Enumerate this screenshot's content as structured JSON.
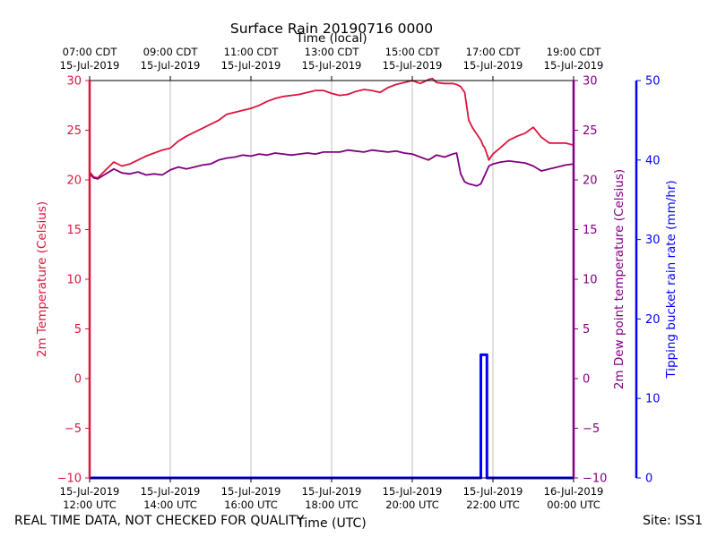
{
  "chart_data": {
    "type": "line",
    "title": "Surface Rain 20190716 0000",
    "top_axis_label": "Time (local)",
    "bottom_axis_label": "Time (UTC)",
    "x_range_hours_utc": [
      12,
      24
    ],
    "bottom_ticks": [
      {
        "h": 12,
        "line1": "15-Jul-2019",
        "line2": "12:00 UTC"
      },
      {
        "h": 14,
        "line1": "15-Jul-2019",
        "line2": "14:00 UTC"
      },
      {
        "h": 16,
        "line1": "15-Jul-2019",
        "line2": "16:00 UTC"
      },
      {
        "h": 18,
        "line1": "15-Jul-2019",
        "line2": "18:00 UTC"
      },
      {
        "h": 20,
        "line1": "15-Jul-2019",
        "line2": "20:00 UTC"
      },
      {
        "h": 22,
        "line1": "15-Jul-2019",
        "line2": "22:00 UTC"
      },
      {
        "h": 24,
        "line1": "16-Jul-2019",
        "line2": "00:00 UTC"
      }
    ],
    "top_ticks": [
      {
        "h": 12,
        "line1": "07:00 CDT",
        "line2": "15-Jul-2019"
      },
      {
        "h": 14,
        "line1": "09:00 CDT",
        "line2": "15-Jul-2019"
      },
      {
        "h": 16,
        "line1": "11:00 CDT",
        "line2": "15-Jul-2019"
      },
      {
        "h": 18,
        "line1": "13:00 CDT",
        "line2": "15-Jul-2019"
      },
      {
        "h": 20,
        "line1": "15:00 CDT",
        "line2": "15-Jul-2019"
      },
      {
        "h": 22,
        "line1": "17:00 CDT",
        "line2": "15-Jul-2019"
      },
      {
        "h": 24,
        "line1": "19:00 CDT",
        "line2": "15-Jul-2019"
      }
    ],
    "left_axis": {
      "label": "2m Temperature (Celsius)",
      "range": [
        -10,
        30
      ],
      "ticks": [
        -10,
        -5,
        0,
        5,
        10,
        15,
        20,
        25,
        30
      ],
      "color": "#dc143c"
    },
    "right_axis": {
      "label": "2m Dew point temperature (Celsius)",
      "range": [
        -10,
        30
      ],
      "ticks": [
        -10,
        -5,
        0,
        5,
        10,
        15,
        20,
        25,
        30
      ],
      "color": "#800080"
    },
    "rain_axis": {
      "label": "Tipping bucket rain rate (mm/hr)",
      "range": [
        0,
        50
      ],
      "ticks": [
        0,
        10,
        20,
        30,
        40,
        50
      ],
      "color": "#0000ff"
    },
    "series": [
      {
        "name": "2m Temperature",
        "axis": "left",
        "color": "#dc143c",
        "x": [
          12.0,
          12.1,
          12.2,
          12.4,
          12.6,
          12.8,
          13.0,
          13.2,
          13.4,
          13.6,
          13.8,
          14.0,
          14.2,
          14.4,
          14.6,
          14.8,
          15.0,
          15.2,
          15.4,
          15.6,
          15.8,
          16.0,
          16.2,
          16.4,
          16.6,
          16.8,
          17.0,
          17.2,
          17.4,
          17.6,
          17.8,
          18.0,
          18.2,
          18.4,
          18.6,
          18.8,
          19.0,
          19.2,
          19.4,
          19.6,
          19.8,
          20.0,
          20.2,
          20.4,
          20.5,
          20.6,
          20.8,
          21.0,
          21.1,
          21.2,
          21.3,
          21.4,
          21.5,
          21.6,
          21.7,
          21.75,
          21.8,
          21.9,
          22.0,
          22.2,
          22.4,
          22.6,
          22.8,
          22.9,
          23.0,
          23.2,
          23.4,
          23.6,
          23.8,
          24.0
        ],
        "values": [
          20.8,
          20.3,
          20.2,
          21.0,
          21.8,
          21.4,
          21.6,
          22.0,
          22.4,
          22.7,
          23.0,
          23.2,
          23.9,
          24.4,
          24.8,
          25.2,
          25.6,
          26.0,
          26.6,
          26.8,
          27.0,
          27.2,
          27.5,
          27.9,
          28.2,
          28.4,
          28.5,
          28.6,
          28.8,
          29.0,
          29.0,
          28.7,
          28.5,
          28.6,
          28.9,
          29.1,
          29.0,
          28.8,
          29.3,
          29.6,
          29.8,
          30.0,
          29.7,
          30.1,
          30.2,
          29.8,
          29.7,
          29.7,
          29.6,
          29.4,
          28.8,
          26.0,
          25.2,
          24.6,
          24.0,
          23.5,
          23.2,
          22.0,
          22.6,
          23.3,
          24.0,
          24.4,
          24.7,
          25.0,
          25.3,
          24.3,
          23.7,
          23.7,
          23.7,
          23.5
        ]
      },
      {
        "name": "2m Dew point temperature",
        "axis": "right",
        "color": "#800080",
        "x": [
          12.0,
          12.1,
          12.2,
          12.4,
          12.6,
          12.8,
          13.0,
          13.2,
          13.4,
          13.6,
          13.8,
          14.0,
          14.2,
          14.4,
          14.6,
          14.8,
          15.0,
          15.2,
          15.4,
          15.6,
          15.8,
          16.0,
          16.2,
          16.4,
          16.6,
          16.8,
          17.0,
          17.2,
          17.4,
          17.6,
          17.8,
          18.0,
          18.2,
          18.4,
          18.6,
          18.8,
          19.0,
          19.2,
          19.4,
          19.6,
          19.8,
          20.0,
          20.2,
          20.4,
          20.6,
          20.8,
          21.0,
          21.1,
          21.2,
          21.3,
          21.4,
          21.5,
          21.6,
          21.7,
          21.8,
          21.9,
          22.0,
          22.2,
          22.4,
          22.6,
          22.8,
          23.0,
          23.2,
          23.4,
          23.6,
          23.8,
          24.0
        ],
        "values": [
          20.6,
          20.2,
          20.1,
          20.6,
          21.1,
          20.7,
          20.6,
          20.8,
          20.5,
          20.6,
          20.5,
          21.0,
          21.3,
          21.1,
          21.3,
          21.5,
          21.6,
          22.0,
          22.2,
          22.3,
          22.5,
          22.4,
          22.6,
          22.5,
          22.7,
          22.6,
          22.5,
          22.6,
          22.7,
          22.6,
          22.8,
          22.8,
          22.8,
          23.0,
          22.9,
          22.8,
          23.0,
          22.9,
          22.8,
          22.9,
          22.7,
          22.6,
          22.3,
          22.0,
          22.5,
          22.3,
          22.6,
          22.7,
          20.6,
          19.8,
          19.6,
          19.5,
          19.4,
          19.6,
          20.5,
          21.4,
          21.6,
          21.8,
          21.9,
          21.8,
          21.7,
          21.4,
          20.9,
          21.1,
          21.3,
          21.5,
          21.6
        ]
      },
      {
        "name": "Tipping bucket rain rate",
        "axis": "rain",
        "color": "#0000ff",
        "x": [
          12.0,
          21.7,
          21.7,
          21.85,
          21.85,
          24.0
        ],
        "values": [
          0,
          0,
          15.5,
          15.5,
          0,
          0
        ]
      }
    ]
  },
  "footer": {
    "quality_note": "REAL TIME DATA, NOT CHECKED FOR QUALITY",
    "site": "Site: ISS1"
  }
}
